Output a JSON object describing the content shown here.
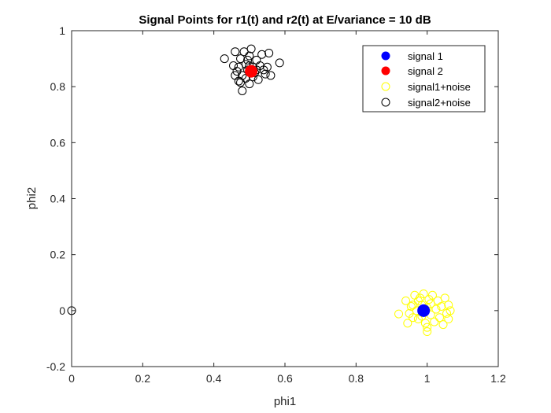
{
  "chart_data": {
    "type": "scatter",
    "title": "Signal Points for r1(t) and r2(t) at E/variance = 10 dB",
    "xlabel": "phi1",
    "ylabel": "phi2",
    "xlim": [
      0,
      1.2
    ],
    "ylim": [
      -0.2,
      1
    ],
    "xticks": [
      0,
      0.2,
      0.4,
      0.6,
      0.8,
      1,
      1.2
    ],
    "xtick_labels": [
      "0",
      "0.2",
      "0.4",
      "0.6",
      "0.8",
      "1",
      "1.2"
    ],
    "yticks": [
      -0.2,
      0,
      0.2,
      0.4,
      0.6,
      0.8,
      1
    ],
    "ytick_labels": [
      "-0.2",
      "0",
      "0.2",
      "0.4",
      "0.6",
      "0.8",
      "1"
    ],
    "grid": false,
    "legend_position": "top-right",
    "series": [
      {
        "name": "signal 1",
        "marker": "filled-circle",
        "color": "#0000ff",
        "points": [
          [
            0.99,
            0.0
          ]
        ]
      },
      {
        "name": "signal 2",
        "marker": "filled-circle",
        "color": "#ff0000",
        "points": [
          [
            0.505,
            0.855
          ]
        ]
      },
      {
        "name": "signal1+noise",
        "marker": "open-circle",
        "color": "#ffff00",
        "points": [
          [
            0.92,
            -0.012
          ],
          [
            0.94,
            0.035
          ],
          [
            0.95,
            -0.01
          ],
          [
            0.96,
            0.02
          ],
          [
            0.965,
            0.055
          ],
          [
            0.97,
            0.0
          ],
          [
            0.975,
            -0.03
          ],
          [
            0.98,
            0.045
          ],
          [
            0.985,
            0.02
          ],
          [
            0.985,
            -0.02
          ],
          [
            0.99,
            0.06
          ],
          [
            0.995,
            -0.045
          ],
          [
            1.0,
            0.01
          ],
          [
            1.0,
            -0.06
          ],
          [
            1.005,
            0.04
          ],
          [
            1.01,
            -0.015
          ],
          [
            1.01,
            0.025
          ],
          [
            1.015,
            0.055
          ],
          [
            1.02,
            -0.04
          ],
          [
            1.025,
            0.005
          ],
          [
            1.03,
            0.035
          ],
          [
            1.035,
            -0.025
          ],
          [
            1.04,
            0.015
          ],
          [
            1.045,
            -0.05
          ],
          [
            1.05,
            0.045
          ],
          [
            1.055,
            -0.01
          ],
          [
            1.06,
            -0.03
          ],
          [
            1.06,
            0.02
          ],
          [
            0.945,
            -0.045
          ],
          [
            0.955,
            0.015
          ],
          [
            1.0,
            -0.075
          ],
          [
            0.975,
            0.035
          ],
          [
            1.065,
            0.0
          ],
          [
            0.96,
            -0.025
          ]
        ]
      },
      {
        "name": "signal2+noise",
        "marker": "open-circle",
        "color": "#000000",
        "points": [
          [
            0.0,
            0.0
          ],
          [
            0.43,
            0.9
          ],
          [
            0.455,
            0.875
          ],
          [
            0.46,
            0.925
          ],
          [
            0.465,
            0.855
          ],
          [
            0.47,
            0.82
          ],
          [
            0.475,
            0.9
          ],
          [
            0.48,
            0.84
          ],
          [
            0.48,
            0.785
          ],
          [
            0.485,
            0.925
          ],
          [
            0.49,
            0.88
          ],
          [
            0.49,
            0.83
          ],
          [
            0.495,
            0.86
          ],
          [
            0.5,
            0.91
          ],
          [
            0.5,
            0.81
          ],
          [
            0.505,
            0.935
          ],
          [
            0.51,
            0.87
          ],
          [
            0.51,
            0.835
          ],
          [
            0.515,
            0.85
          ],
          [
            0.52,
            0.895
          ],
          [
            0.525,
            0.825
          ],
          [
            0.53,
            0.875
          ],
          [
            0.535,
            0.915
          ],
          [
            0.54,
            0.86
          ],
          [
            0.545,
            0.845
          ],
          [
            0.55,
            0.87
          ],
          [
            0.555,
            0.92
          ],
          [
            0.56,
            0.84
          ],
          [
            0.585,
            0.885
          ],
          [
            0.47,
            0.87
          ],
          [
            0.495,
            0.895
          ],
          [
            0.46,
            0.84
          ],
          [
            0.475,
            0.815
          ],
          [
            0.52,
            0.86
          ],
          [
            0.5,
            0.875
          ]
        ]
      }
    ]
  }
}
